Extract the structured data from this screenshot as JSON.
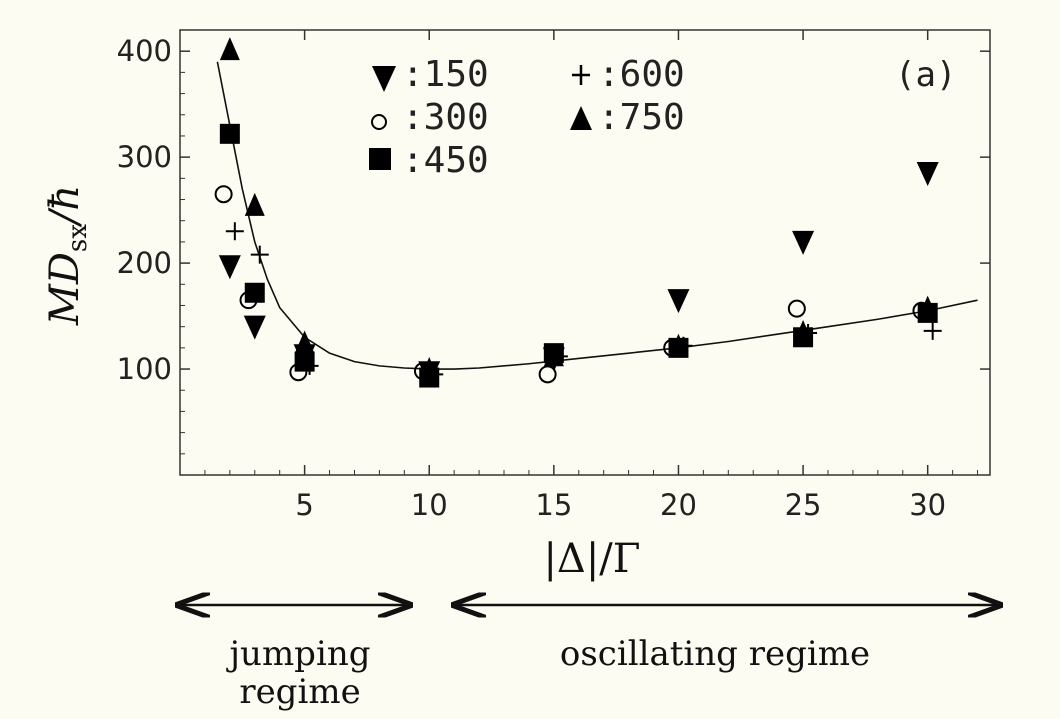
{
  "chart_data": {
    "type": "scatter",
    "panel_label": "(a)",
    "xlabel": "|Δ|/Γ",
    "ylabel": "MD_sx/ħ",
    "ylabel_main": "MD",
    "ylabel_sub": "sx",
    "ylabel_tail": "/ħ",
    "xlim": [
      0,
      32.5
    ],
    "ylim": [
      0,
      420
    ],
    "grid": false,
    "legend_position": "top",
    "xticks": [
      {
        "value": 5,
        "label": "5"
      },
      {
        "value": 10,
        "label": "10"
      },
      {
        "value": 15,
        "label": "15"
      },
      {
        "value": 20,
        "label": "20"
      },
      {
        "value": 25,
        "label": "25"
      },
      {
        "value": 30,
        "label": "30"
      }
    ],
    "yticks": [
      {
        "value": 100,
        "label": "100"
      },
      {
        "value": 200,
        "label": "200"
      },
      {
        "value": 300,
        "label": "300"
      },
      {
        "value": 400,
        "label": "400"
      }
    ],
    "series": [
      {
        "name": "150",
        "marker": "triangle-down",
        "points": [
          [
            2,
            197
          ],
          [
            3,
            140
          ],
          [
            5,
            113
          ],
          [
            10,
            97
          ],
          [
            15,
            110
          ],
          [
            20,
            165
          ],
          [
            25,
            220
          ],
          [
            30,
            285
          ]
        ]
      },
      {
        "name": "300",
        "marker": "circle-open",
        "points": [
          [
            2,
            265
          ],
          [
            3,
            165
          ],
          [
            5,
            97
          ],
          [
            10,
            98
          ],
          [
            15,
            95
          ],
          [
            20,
            120
          ],
          [
            25,
            157
          ],
          [
            30,
            155
          ]
        ]
      },
      {
        "name": "450",
        "marker": "square",
        "points": [
          [
            2,
            322
          ],
          [
            3,
            172
          ],
          [
            5,
            107
          ],
          [
            10,
            92
          ],
          [
            15,
            115
          ],
          [
            20,
            120
          ],
          [
            25,
            130
          ],
          [
            30,
            153
          ]
        ]
      },
      {
        "name": "600",
        "marker": "plus",
        "points": [
          [
            2,
            230
          ],
          [
            3,
            208
          ],
          [
            5,
            103
          ],
          [
            10,
            95
          ],
          [
            15,
            112
          ],
          [
            20,
            122
          ],
          [
            25,
            134
          ],
          [
            30,
            136
          ]
        ]
      },
      {
        "name": "750",
        "marker": "triangle-up",
        "points": [
          [
            2,
            402
          ],
          [
            3,
            255
          ],
          [
            5,
            125
          ],
          [
            10,
            100
          ],
          [
            15,
            113
          ],
          [
            20,
            122
          ],
          [
            25,
            135
          ],
          [
            30,
            158
          ]
        ]
      }
    ],
    "fit_curve": {
      "points": [
        [
          1.5,
          390
        ],
        [
          2,
          330
        ],
        [
          2.5,
          270
        ],
        [
          3,
          220
        ],
        [
          3.5,
          185
        ],
        [
          4,
          158
        ],
        [
          5,
          130
        ],
        [
          6,
          115
        ],
        [
          7,
          107
        ],
        [
          8,
          103
        ],
        [
          9,
          101
        ],
        [
          10,
          100
        ],
        [
          11,
          100
        ],
        [
          12,
          101
        ],
        [
          14,
          105
        ],
        [
          16,
          110
        ],
        [
          18,
          115
        ],
        [
          20,
          120
        ],
        [
          22,
          126
        ],
        [
          24,
          133
        ],
        [
          26,
          140
        ],
        [
          28,
          147
        ],
        [
          30,
          155
        ],
        [
          32,
          165
        ]
      ]
    },
    "legend_labels": {
      "s150": ":150",
      "s300": ":300",
      "s450": ":450",
      "s600": ":600",
      "s750": ":750"
    },
    "regimes": {
      "jumping_line1": "jumping",
      "jumping_line2": "regime",
      "oscillating": "oscillating regime"
    }
  }
}
